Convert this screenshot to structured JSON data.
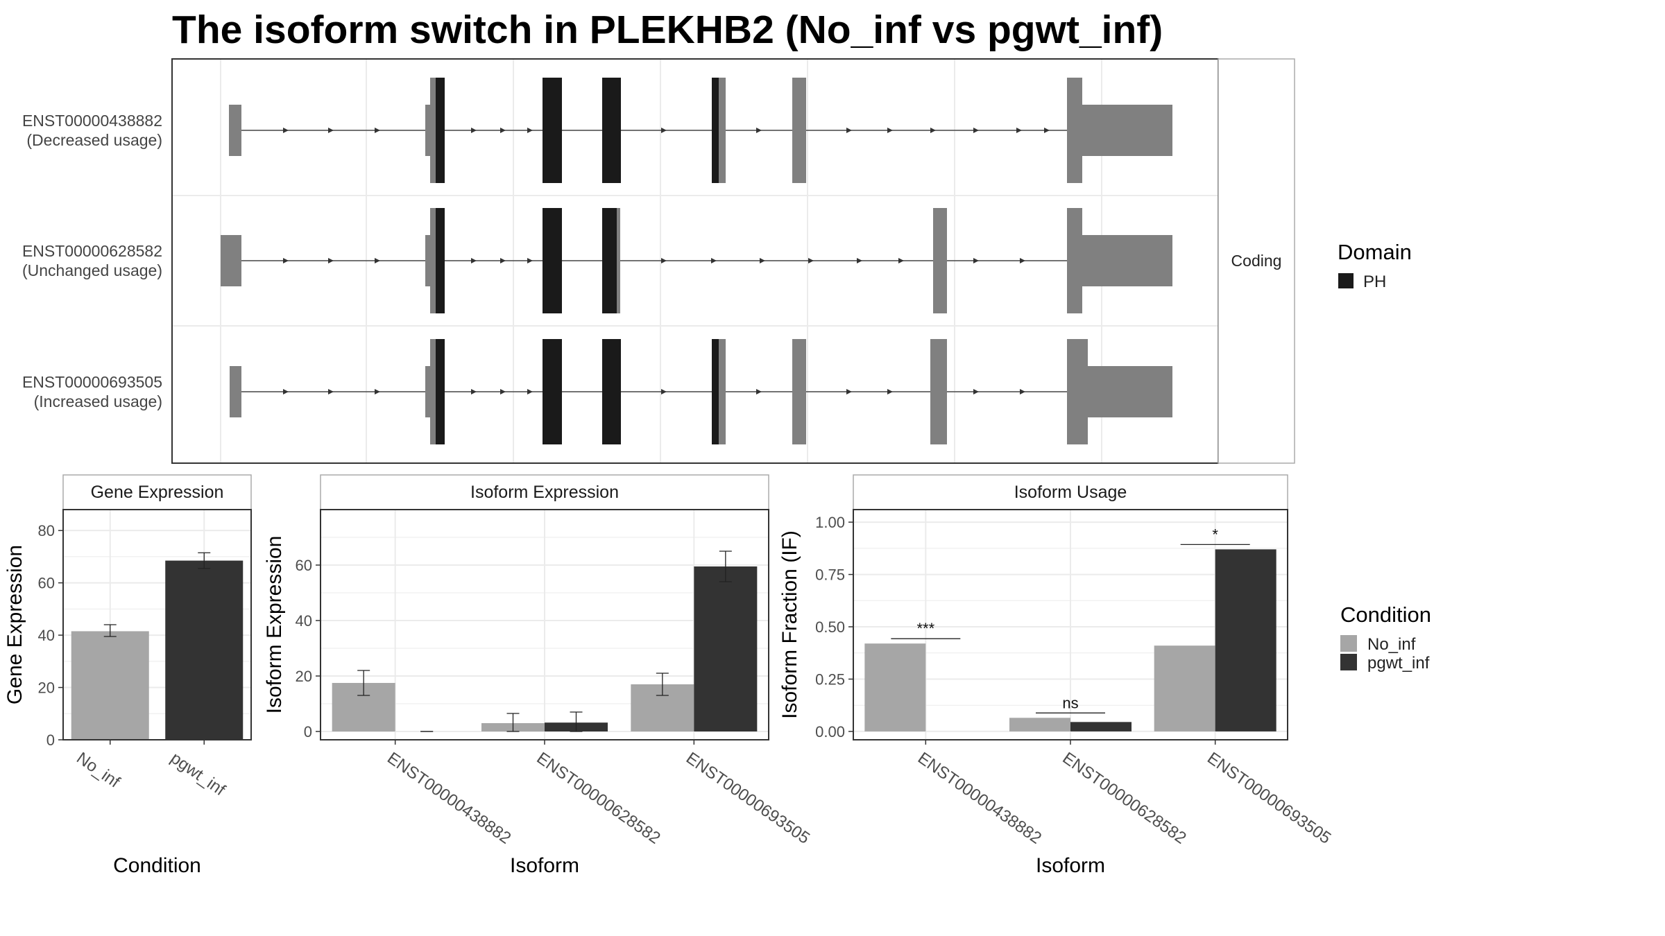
{
  "title": "The isoform switch in PLEKHB2 (No_inf vs pgwt_inf)",
  "colors": {
    "no_inf": "#A6A6A6",
    "pgwt_inf": "#333333",
    "domain_ph": "#1A1A1A",
    "exon": "#808080",
    "grid": "#EBEBEB",
    "panel_border": "#333333",
    "strip_border": "#AAAAAA"
  },
  "structure_panel": {
    "strip_label": "Coding",
    "legend_title": "Domain",
    "legend_items": [
      {
        "label": "PH",
        "color": "#1A1A1A"
      }
    ],
    "transcripts": [
      {
        "id": "ENST00000438882",
        "usage": "(Decreased usage)"
      },
      {
        "id": "ENST00000628582",
        "usage": "(Unchanged usage)"
      },
      {
        "id": "ENST00000693505",
        "usage": "(Increased usage)"
      }
    ]
  },
  "condition_legend": {
    "title": "Condition",
    "items": [
      {
        "label": "No_inf",
        "color": "#A6A6A6"
      },
      {
        "label": "pgwt_inf",
        "color": "#333333"
      }
    ]
  },
  "chart_data": [
    {
      "type": "bar",
      "title": "Gene Expression",
      "xlabel": "Condition",
      "ylabel": "Gene Expression",
      "categories": [
        "No_inf",
        "pgwt_inf"
      ],
      "values": [
        41.5,
        68.5
      ],
      "errors": [
        [
          39.5,
          44
        ],
        [
          65.5,
          71.5
        ]
      ],
      "ylim": [
        0,
        88
      ],
      "yticks": [
        0,
        20,
        40,
        60,
        80
      ]
    },
    {
      "type": "bar",
      "title": "Isoform Expression",
      "xlabel": "Isoform",
      "ylabel": "Isoform Expression",
      "categories": [
        "ENST00000438882",
        "ENST00000628582",
        "ENST00000693505"
      ],
      "series": [
        {
          "name": "No_inf",
          "values": [
            17.5,
            3,
            17
          ],
          "errors": [
            [
              13,
              22
            ],
            [
              0,
              6.5
            ],
            [
              13,
              21
            ]
          ]
        },
        {
          "name": "pgwt_inf",
          "values": [
            0,
            3.2,
            59.5
          ],
          "errors": [
            [
              0,
              0
            ],
            [
              0,
              7
            ],
            [
              54,
              65
            ]
          ]
        }
      ],
      "ylim": [
        -3,
        80
      ],
      "yticks": [
        0,
        20,
        40,
        60
      ]
    },
    {
      "type": "bar",
      "title": "Isoform Usage",
      "xlabel": "Isoform",
      "ylabel": "Isoform Fraction (IF)",
      "categories": [
        "ENST00000438882",
        "ENST00000628582",
        "ENST00000693505"
      ],
      "series": [
        {
          "name": "No_inf",
          "values": [
            0.42,
            0.065,
            0.41
          ]
        },
        {
          "name": "pgwt_inf",
          "values": [
            0,
            0.045,
            0.87
          ]
        }
      ],
      "significance": [
        "***",
        "ns",
        "*"
      ],
      "ylim": [
        -0.04,
        1.06
      ],
      "yticks": [
        0,
        0.25,
        0.5,
        0.75,
        1
      ],
      "ytick_labels": [
        "0.00",
        "0.25",
        "0.50",
        "0.75",
        "1.00"
      ]
    }
  ]
}
